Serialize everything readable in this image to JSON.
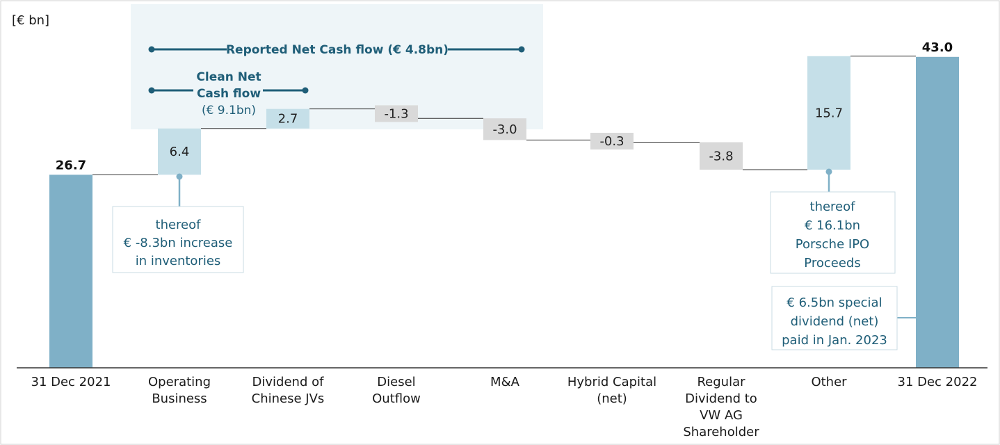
{
  "colors": {
    "total_bar": "#7fb0c7",
    "positive_bar": "#c5dfe8",
    "negative_bar": "#d9d9d9",
    "accent": "#1f5e78",
    "highlight_band": "#eef5f8"
  },
  "chart_data": {
    "type": "waterfall",
    "ylabel": "[€ bn]",
    "categories": [
      [
        "31 Dec 2021"
      ],
      [
        "Operating",
        "Business"
      ],
      [
        "Dividend of",
        "Chinese JVs"
      ],
      [
        "Diesel",
        "Outflow"
      ],
      [
        "M&A"
      ],
      [
        "Hybrid Capital",
        "(net)"
      ],
      [
        "Regular",
        "Dividend to",
        "VW AG",
        "Shareholder"
      ],
      [
        "Other"
      ],
      [
        "31 Dec 2022"
      ]
    ],
    "values": [
      26.7,
      6.4,
      2.7,
      -1.3,
      -3.0,
      -0.3,
      -3.8,
      15.7,
      43.0
    ],
    "value_labels": [
      "26.7",
      "6.4",
      "2.7",
      "-1.3",
      "-3.0",
      "-0.3",
      "-3.8",
      "15.7",
      "43.0"
    ],
    "bar_kinds": [
      "total",
      "delta",
      "delta",
      "delta",
      "delta",
      "delta",
      "delta",
      "delta",
      "total"
    ],
    "ylim": [
      0,
      48
    ],
    "grid": false,
    "brackets": [
      {
        "label": "Reported Net Cash flow (€ 4.8bn)"
      },
      {
        "label_lines": [
          "Clean Net",
          "Cash flow"
        ],
        "sub": "(€ 9.1bn)"
      }
    ],
    "annotations": [
      {
        "lines": [
          "thereof",
          "€ -8.3bn increase",
          "in inventories"
        ]
      },
      {
        "lines": [
          "thereof",
          "€ 16.1bn",
          "Porsche IPO",
          "Proceeds"
        ]
      },
      {
        "lines": [
          "€ 6.5bn special",
          "dividend (net)",
          "paid in Jan. 2023"
        ]
      }
    ]
  }
}
